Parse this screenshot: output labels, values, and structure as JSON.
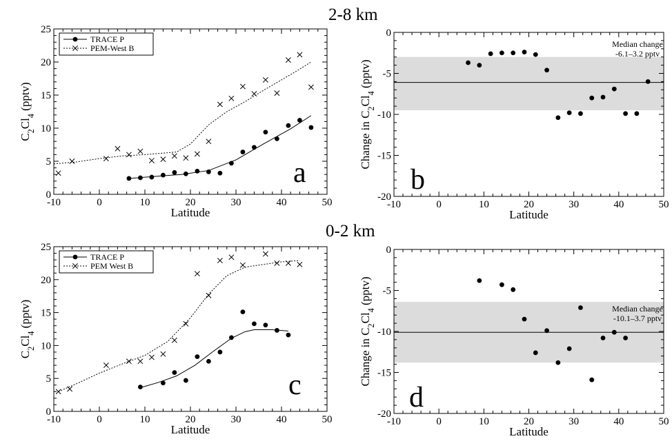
{
  "headers": {
    "top": "2-8 km",
    "bottom": "0-2 km"
  },
  "chart_data": [
    {
      "id": "a",
      "type": "scatter",
      "panel_letter": "a",
      "xlabel": "Latitude",
      "ylabel": "C2Cl4 (pptv)",
      "xlim": [
        -10,
        50
      ],
      "ylim": [
        0,
        25
      ],
      "xticks": [
        -10,
        0,
        10,
        20,
        30,
        40,
        50
      ],
      "yticks": [
        0,
        5,
        10,
        15,
        20,
        25
      ],
      "legend": {
        "position": "top-left",
        "entries": [
          {
            "label": "TRACE P",
            "marker": "dot",
            "line": "solid"
          },
          {
            "label": "PEM-West B",
            "marker": "cross",
            "line": "dotted"
          }
        ]
      },
      "series": [
        {
          "name": "TRACE P",
          "marker": "dot",
          "points": [
            [
              6.5,
              2.4
            ],
            [
              9,
              2.5
            ],
            [
              11.5,
              2.6
            ],
            [
              14,
              2.9
            ],
            [
              16.5,
              3.3
            ],
            [
              19,
              3.1
            ],
            [
              21.5,
              3.5
            ],
            [
              24,
              3.4
            ],
            [
              26.5,
              3.2
            ],
            [
              29,
              4.7
            ],
            [
              31.5,
              6.4
            ],
            [
              34,
              7.1
            ],
            [
              36.5,
              9.4
            ],
            [
              39,
              8.4
            ],
            [
              41.5,
              10.4
            ],
            [
              44,
              11.2
            ],
            [
              46.5,
              10.1
            ]
          ],
          "fit": [
            [
              6.5,
              2.4
            ],
            [
              12,
              2.7
            ],
            [
              18,
              3
            ],
            [
              24,
              3.6
            ],
            [
              30,
              5.2
            ],
            [
              36,
              7.6
            ],
            [
              42,
              9.9
            ],
            [
              46.5,
              11.9
            ]
          ]
        },
        {
          "name": "PEM-West B",
          "marker": "cross",
          "points": [
            [
              -9,
              3.2
            ],
            [
              -6,
              5
            ],
            [
              1.5,
              5.4
            ],
            [
              4,
              6.9
            ],
            [
              6.5,
              6
            ],
            [
              9,
              6.5
            ],
            [
              11.5,
              5.1
            ],
            [
              14,
              5.3
            ],
            [
              16.5,
              5.8
            ],
            [
              19,
              5.5
            ],
            [
              21.5,
              6.1
            ],
            [
              24,
              8
            ],
            [
              26.5,
              13.6
            ],
            [
              29,
              14.5
            ],
            [
              31.5,
              16.3
            ],
            [
              34,
              15.2
            ],
            [
              36.5,
              17.3
            ],
            [
              39,
              15.3
            ],
            [
              41.5,
              20.3
            ],
            [
              44,
              21.1
            ],
            [
              46.5,
              16.2
            ]
          ],
          "fit": [
            [
              -10,
              4.6
            ],
            [
              -5,
              4.9
            ],
            [
              0,
              5.4
            ],
            [
              5,
              5.8
            ],
            [
              10,
              6
            ],
            [
              17,
              6.4
            ],
            [
              20,
              7.6
            ],
            [
              24,
              10.5
            ],
            [
              28,
              12.5
            ],
            [
              32,
              14
            ],
            [
              36,
              15.7
            ],
            [
              40,
              17.3
            ],
            [
              43,
              18.5
            ],
            [
              46.5,
              20
            ]
          ]
        }
      ]
    },
    {
      "id": "b",
      "type": "scatter",
      "panel_letter": "b",
      "xlabel": "Latitude",
      "ylabel": "Change in C2Cl4 (pptv)",
      "xlim": [
        -10,
        50
      ],
      "ylim": [
        -20,
        0
      ],
      "xticks": [
        -10,
        0,
        10,
        20,
        30,
        40,
        50
      ],
      "yticks": [
        0,
        -5,
        -10,
        -15,
        -20
      ],
      "median": -6.1,
      "band": [
        -9.5,
        -3.0
      ],
      "annotation": {
        "line1": "Median change",
        "line2": "-6.1–3.2 pptv"
      },
      "series": [
        {
          "name": "Change",
          "marker": "dot",
          "points": [
            [
              6.5,
              -3.7
            ],
            [
              9,
              -4
            ],
            [
              11.5,
              -2.6
            ],
            [
              14,
              -2.5
            ],
            [
              16.5,
              -2.5
            ],
            [
              19,
              -2.4
            ],
            [
              21.5,
              -2.7
            ],
            [
              24,
              -4.6
            ],
            [
              26.5,
              -10.4
            ],
            [
              29,
              -9.8
            ],
            [
              31.5,
              -9.9
            ],
            [
              34,
              -8
            ],
            [
              36.5,
              -7.9
            ],
            [
              39,
              -6.9
            ],
            [
              41.5,
              -9.9
            ],
            [
              44,
              -9.9
            ],
            [
              46.5,
              -6
            ]
          ]
        }
      ]
    },
    {
      "id": "c",
      "type": "scatter",
      "panel_letter": "c",
      "xlabel": "Latitude",
      "ylabel": "C2Cl4 (pptv)",
      "xlim": [
        -10,
        50
      ],
      "ylim": [
        0,
        25
      ],
      "xticks": [
        -10,
        0,
        10,
        20,
        30,
        40,
        50
      ],
      "yticks": [
        0,
        5,
        10,
        15,
        20,
        25
      ],
      "legend": {
        "position": "top-left",
        "entries": [
          {
            "label": "TRACE P",
            "marker": "dot",
            "line": "solid"
          },
          {
            "label": "PEM West B",
            "marker": "cross",
            "line": "dotted"
          }
        ]
      },
      "series": [
        {
          "name": "TRACE P",
          "marker": "dot",
          "points": [
            [
              9,
              3.7
            ],
            [
              14,
              4.3
            ],
            [
              16.5,
              5.9
            ],
            [
              19,
              4.7
            ],
            [
              21.5,
              8.3
            ],
            [
              24,
              7.6
            ],
            [
              26.5,
              9
            ],
            [
              29,
              11.2
            ],
            [
              31.5,
              15.1
            ],
            [
              34,
              13.3
            ],
            [
              36.5,
              13.1
            ],
            [
              39,
              12.3
            ],
            [
              41.5,
              11.6
            ]
          ],
          "fit": [
            [
              9,
              3.6
            ],
            [
              13,
              4.4
            ],
            [
              17,
              5.4
            ],
            [
              21,
              7
            ],
            [
              25,
              9.1
            ],
            [
              29,
              11.1
            ],
            [
              32,
              12.1
            ],
            [
              34,
              12.4
            ],
            [
              38,
              12.4
            ],
            [
              41.5,
              12.2
            ]
          ]
        },
        {
          "name": "PEM West B",
          "marker": "cross",
          "points": [
            [
              -9,
              3
            ],
            [
              -6.5,
              3.4
            ],
            [
              1.5,
              7
            ],
            [
              6.5,
              7.6
            ],
            [
              9,
              7.6
            ],
            [
              11.5,
              8.2
            ],
            [
              14,
              8.7
            ],
            [
              16.5,
              10.8
            ],
            [
              19,
              13.3
            ],
            [
              21.5,
              20.9
            ],
            [
              24,
              17.6
            ],
            [
              26.5,
              22.9
            ],
            [
              29,
              23.4
            ],
            [
              31.5,
              22.2
            ],
            [
              36.5,
              23.9
            ],
            [
              39,
              22.5
            ],
            [
              41.5,
              22.5
            ],
            [
              44,
              22.3
            ]
          ],
          "fit": [
            [
              -9,
              3
            ],
            [
              -5,
              4.2
            ],
            [
              0,
              5.8
            ],
            [
              5,
              7.2
            ],
            [
              10,
              8.5
            ],
            [
              15,
              10.6
            ],
            [
              20,
              14.2
            ],
            [
              24,
              17.8
            ],
            [
              28,
              20.6
            ],
            [
              32,
              21.9
            ],
            [
              36,
              22.3
            ],
            [
              40,
              22.7
            ],
            [
              44,
              22.9
            ]
          ]
        }
      ]
    },
    {
      "id": "d",
      "type": "scatter",
      "panel_letter": "d",
      "xlabel": "Latitude",
      "ylabel": "Change in C2Cl4 (pptv)",
      "xlim": [
        -10,
        50
      ],
      "ylim": [
        -20,
        0
      ],
      "xticks": [
        -10,
        0,
        10,
        20,
        30,
        40,
        50
      ],
      "yticks": [
        0,
        -5,
        -10,
        -15,
        -20
      ],
      "median": -10.1,
      "band": [
        -13.8,
        -6.4
      ],
      "annotation": {
        "line1": "Median change",
        "line2": "-10.1–3.7 pptv"
      },
      "series": [
        {
          "name": "Change",
          "marker": "dot",
          "points": [
            [
              9,
              -3.8
            ],
            [
              14,
              -4.3
            ],
            [
              16.5,
              -4.9
            ],
            [
              19,
              -8.5
            ],
            [
              21.5,
              -12.6
            ],
            [
              24,
              -9.9
            ],
            [
              26.5,
              -13.8
            ],
            [
              29,
              -12.1
            ],
            [
              31.5,
              -7.1
            ],
            [
              34,
              -15.9
            ],
            [
              36.5,
              -10.8
            ],
            [
              39,
              -10.1
            ],
            [
              41.5,
              -10.8
            ]
          ]
        }
      ]
    }
  ]
}
